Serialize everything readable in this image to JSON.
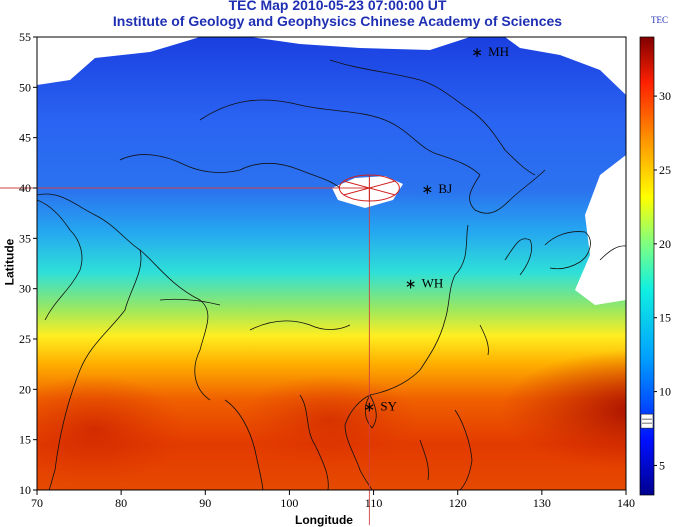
{
  "header": {
    "title": "TEC Map 2010-05-23 07:00:00 UT",
    "subtitle": "Institute of Geology and Geophysics Chinese Academy of Sciences"
  },
  "axes": {
    "xlabel": "Longitude",
    "ylabel": "Latitude",
    "x_ticks": [
      "70",
      "80",
      "90",
      "100",
      "110",
      "120",
      "130",
      "140"
    ],
    "y_ticks": [
      "55",
      "50",
      "45",
      "40",
      "35",
      "30",
      "25",
      "20",
      "15",
      "10"
    ]
  },
  "colorbar": {
    "title": "TEC",
    "ticks": [
      "30",
      "25",
      "20",
      "15",
      "10",
      "5"
    ],
    "range": [
      3,
      34
    ],
    "marker_value": 8
  },
  "stations": [
    {
      "code": "MH",
      "lon": 122.3,
      "lat": 53.5
    },
    {
      "code": "BJ",
      "lon": 116.4,
      "lat": 39.9
    },
    {
      "code": "WH",
      "lon": 114.4,
      "lat": 30.5
    },
    {
      "code": "SY",
      "lon": 109.5,
      "lat": 18.3
    }
  ],
  "crosshair": {
    "lon": 109.5,
    "lat": 40.0
  },
  "colors": {
    "title": "#1f2fb3",
    "high": "#b51800",
    "low": "#1e5fe6",
    "crosshair": "#d04040"
  }
}
